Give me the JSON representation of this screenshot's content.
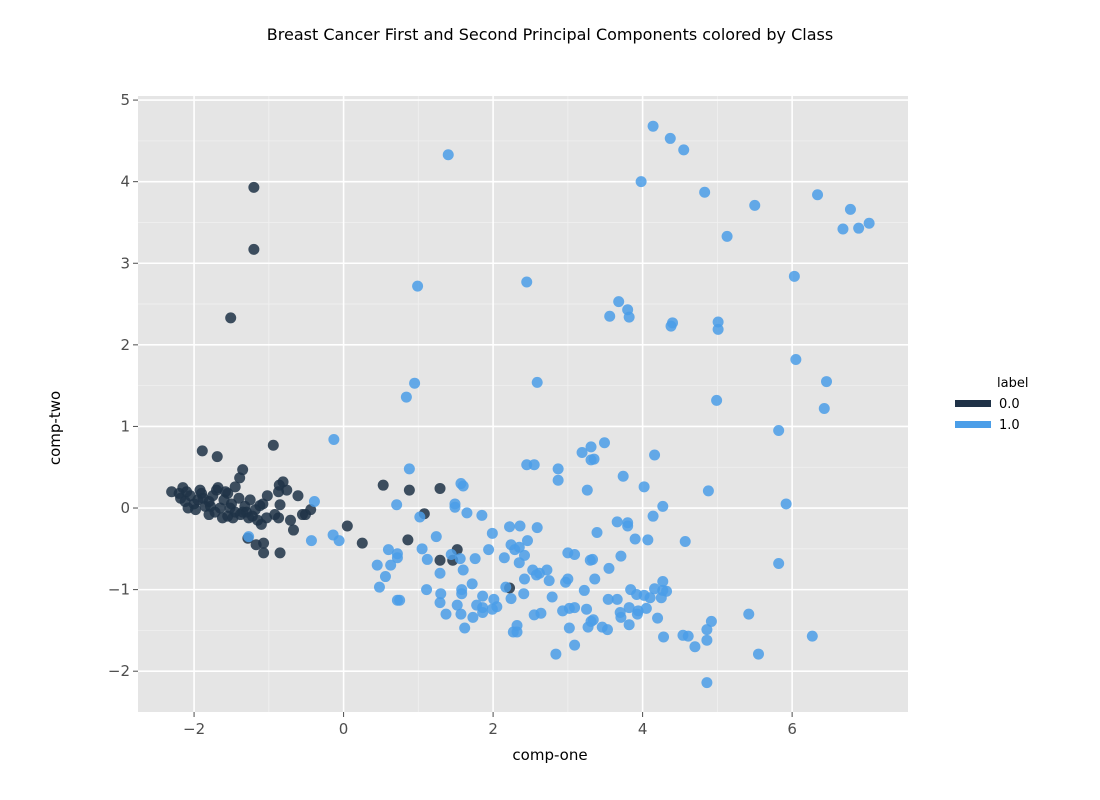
{
  "chart_data": {
    "type": "scatter",
    "title": "Breast Cancer First and Second Principal Components colored by Class",
    "xlabel": "comp-one",
    "ylabel": "comp-two",
    "xlim": [
      -2.75,
      7.55
    ],
    "ylim": [
      -2.5,
      5.05
    ],
    "xticks": [
      -2,
      0,
      2,
      4,
      6
    ],
    "yticks": [
      -2,
      -1,
      0,
      1,
      2,
      3,
      4,
      5
    ],
    "xtick_labels": [
      "−2",
      "0",
      "2",
      "4",
      "6"
    ],
    "ytick_labels": [
      "−2",
      "−1",
      "0",
      "1",
      "2",
      "3",
      "4",
      "5"
    ],
    "grid": true,
    "legend": {
      "title": "label",
      "position": "right"
    },
    "series": [
      {
        "name": "0.0",
        "color": "#1f3247",
        "points": [
          [
            -1.2,
            3.93
          ],
          [
            -1.2,
            3.17
          ],
          [
            -1.51,
            2.33
          ],
          [
            -1.89,
            0.7
          ],
          [
            -1.69,
            0.63
          ],
          [
            -0.94,
            0.77
          ],
          [
            -1.35,
            0.47
          ],
          [
            -1.39,
            0.37
          ],
          [
            -0.81,
            0.32
          ],
          [
            -0.86,
            0.28
          ],
          [
            -0.76,
            0.22
          ],
          [
            -0.87,
            0.2
          ],
          [
            -0.61,
            0.15
          ],
          [
            -0.85,
            0.04
          ],
          [
            -0.44,
            -0.02
          ],
          [
            -0.51,
            -0.08
          ],
          [
            -0.71,
            -0.15
          ],
          [
            -0.87,
            -0.12
          ],
          [
            -0.67,
            -0.27
          ],
          [
            -0.85,
            -0.55
          ],
          [
            -1.07,
            -0.55
          ],
          [
            -1.07,
            -0.43
          ],
          [
            -1.17,
            -0.45
          ],
          [
            -1.28,
            -0.37
          ],
          [
            -1.03,
            -0.12
          ],
          [
            -1.1,
            -0.2
          ],
          [
            -1.15,
            -0.15
          ],
          [
            -1.02,
            0.15
          ],
          [
            -1.08,
            0.05
          ],
          [
            -1.25,
            0.1
          ],
          [
            -1.3,
            -0.05
          ],
          [
            -1.22,
            -0.1
          ],
          [
            -1.45,
            0.26
          ],
          [
            -1.55,
            0.18
          ],
          [
            -1.6,
            0.1
          ],
          [
            -1.5,
            0.05
          ],
          [
            -1.45,
            -0.05
          ],
          [
            -1.38,
            -0.08
          ],
          [
            -1.62,
            -0.12
          ],
          [
            -1.7,
            0.22
          ],
          [
            -1.75,
            0.15
          ],
          [
            -1.8,
            0.08
          ],
          [
            -1.85,
            0.02
          ],
          [
            -1.72,
            -0.05
          ],
          [
            -1.65,
            0.0
          ],
          [
            -1.9,
            0.18
          ],
          [
            -1.95,
            0.1
          ],
          [
            -2.0,
            0.05
          ],
          [
            -2.05,
            0.15
          ],
          [
            -2.1,
            0.2
          ],
          [
            -2.15,
            0.25
          ],
          [
            -2.18,
            0.12
          ],
          [
            -2.2,
            0.18
          ],
          [
            -2.3,
            0.2
          ],
          [
            -2.08,
            0.0
          ],
          [
            -1.98,
            -0.02
          ],
          [
            -1.88,
            0.12
          ],
          [
            -1.8,
            -0.08
          ],
          [
            -1.55,
            -0.1
          ],
          [
            -1.32,
            0.02
          ],
          [
            -1.18,
            -0.02
          ],
          [
            -1.12,
            0.03
          ],
          [
            -1.4,
            0.12
          ],
          [
            -1.58,
            0.2
          ],
          [
            -1.68,
            0.25
          ],
          [
            -1.92,
            0.22
          ],
          [
            -2.12,
            0.08
          ],
          [
            -1.78,
            0.02
          ],
          [
            -1.48,
            -0.12
          ],
          [
            -1.27,
            -0.12
          ],
          [
            -1.35,
            -0.05
          ],
          [
            -1.52,
            0.0
          ],
          [
            -0.55,
            -0.08
          ],
          [
            -0.92,
            -0.08
          ],
          [
            0.05,
            -0.22
          ],
          [
            0.25,
            -0.43
          ],
          [
            0.53,
            0.28
          ],
          [
            0.88,
            0.22
          ],
          [
            0.86,
            -0.39
          ],
          [
            1.29,
            0.24
          ],
          [
            1.08,
            -0.07
          ],
          [
            1.29,
            -0.64
          ],
          [
            1.52,
            -0.51
          ],
          [
            1.46,
            -0.64
          ],
          [
            2.22,
            -0.98
          ]
        ]
      },
      {
        "name": "1.0",
        "color": "#4b9ee8",
        "points": [
          [
            1.4,
            4.33
          ],
          [
            4.14,
            4.68
          ],
          [
            4.37,
            4.53
          ],
          [
            4.55,
            4.39
          ],
          [
            3.98,
            4.0
          ],
          [
            4.83,
            3.87
          ],
          [
            5.5,
            3.71
          ],
          [
            6.34,
            3.84
          ],
          [
            6.78,
            3.66
          ],
          [
            7.03,
            3.49
          ],
          [
            6.89,
            3.43
          ],
          [
            6.68,
            3.42
          ],
          [
            5.13,
            3.33
          ],
          [
            6.03,
            2.84
          ],
          [
            2.45,
            2.77
          ],
          [
            0.99,
            2.72
          ],
          [
            3.68,
            2.53
          ],
          [
            3.8,
            2.43
          ],
          [
            3.82,
            2.34
          ],
          [
            3.56,
            2.35
          ],
          [
            4.4,
            2.27
          ],
          [
            4.38,
            2.23
          ],
          [
            5.01,
            2.28
          ],
          [
            5.01,
            2.19
          ],
          [
            6.05,
            1.82
          ],
          [
            2.59,
            1.54
          ],
          [
            0.95,
            1.53
          ],
          [
            0.84,
            1.36
          ],
          [
            6.46,
            1.55
          ],
          [
            4.99,
            1.32
          ],
          [
            6.43,
            1.22
          ],
          [
            5.82,
            0.95
          ],
          [
            -0.13,
            0.84
          ],
          [
            3.49,
            0.8
          ],
          [
            3.31,
            0.75
          ],
          [
            3.19,
            0.68
          ],
          [
            4.16,
            0.65
          ],
          [
            3.35,
            0.6
          ],
          [
            3.31,
            0.59
          ],
          [
            2.45,
            0.53
          ],
          [
            2.55,
            0.53
          ],
          [
            2.87,
            0.48
          ],
          [
            0.88,
            0.48
          ],
          [
            3.74,
            0.39
          ],
          [
            2.87,
            0.34
          ],
          [
            1.57,
            0.3
          ],
          [
            1.6,
            0.27
          ],
          [
            4.02,
            0.26
          ],
          [
            3.26,
            0.22
          ],
          [
            4.88,
            0.21
          ],
          [
            -0.39,
            0.08
          ],
          [
            0.71,
            0.04
          ],
          [
            1.49,
            0.05
          ],
          [
            1.49,
            0.01
          ],
          [
            4.27,
            0.02
          ],
          [
            5.92,
            0.05
          ],
          [
            1.65,
            -0.06
          ],
          [
            1.85,
            -0.09
          ],
          [
            1.02,
            -0.11
          ],
          [
            4.14,
            -0.1
          ],
          [
            3.66,
            -0.17
          ],
          [
            3.8,
            -0.18
          ],
          [
            3.8,
            -0.22
          ],
          [
            2.22,
            -0.23
          ],
          [
            2.36,
            -0.22
          ],
          [
            2.59,
            -0.24
          ],
          [
            1.99,
            -0.31
          ],
          [
            3.39,
            -0.3
          ],
          [
            -0.14,
            -0.33
          ],
          [
            -0.06,
            -0.4
          ],
          [
            -0.43,
            -0.4
          ],
          [
            -1.27,
            -0.35
          ],
          [
            1.24,
            -0.35
          ],
          [
            3.9,
            -0.38
          ],
          [
            4.07,
            -0.39
          ],
          [
            4.57,
            -0.41
          ],
          [
            2.46,
            -0.4
          ],
          [
            2.24,
            -0.45
          ],
          [
            2.35,
            -0.48
          ],
          [
            1.94,
            -0.51
          ],
          [
            0.6,
            -0.51
          ],
          [
            1.05,
            -0.5
          ],
          [
            2.29,
            -0.51
          ],
          [
            2.42,
            -0.58
          ],
          [
            3.0,
            -0.55
          ],
          [
            3.09,
            -0.57
          ],
          [
            2.15,
            -0.61
          ],
          [
            1.44,
            -0.57
          ],
          [
            1.56,
            -0.62
          ],
          [
            1.12,
            -0.63
          ],
          [
            1.76,
            -0.62
          ],
          [
            0.72,
            -0.56
          ],
          [
            0.72,
            -0.61
          ],
          [
            3.71,
            -0.59
          ],
          [
            3.33,
            -0.63
          ],
          [
            3.3,
            -0.64
          ],
          [
            2.35,
            -0.67
          ],
          [
            0.63,
            -0.7
          ],
          [
            0.45,
            -0.7
          ],
          [
            2.53,
            -0.76
          ],
          [
            2.62,
            -0.8
          ],
          [
            2.58,
            -0.82
          ],
          [
            1.6,
            -0.76
          ],
          [
            2.72,
            -0.76
          ],
          [
            1.29,
            -0.8
          ],
          [
            3.55,
            -0.74
          ],
          [
            0.56,
            -0.84
          ],
          [
            2.42,
            -0.87
          ],
          [
            2.75,
            -0.89
          ],
          [
            3.0,
            -0.87
          ],
          [
            3.36,
            -0.87
          ],
          [
            4.27,
            -0.9
          ],
          [
            1.72,
            -0.93
          ],
          [
            0.48,
            -0.97
          ],
          [
            2.97,
            -0.91
          ],
          [
            2.17,
            -0.97
          ],
          [
            3.22,
            -1.01
          ],
          [
            1.11,
            -1.0
          ],
          [
            1.58,
            -1.0
          ],
          [
            1.58,
            -1.05
          ],
          [
            3.84,
            -1.0
          ],
          [
            4.16,
            -0.99
          ],
          [
            4.32,
            -1.02
          ],
          [
            4.27,
            -1.01
          ],
          [
            1.3,
            -1.05
          ],
          [
            1.86,
            -1.08
          ],
          [
            2.01,
            -1.12
          ],
          [
            2.24,
            -1.11
          ],
          [
            2.41,
            -1.05
          ],
          [
            2.79,
            -1.09
          ],
          [
            3.54,
            -1.12
          ],
          [
            3.66,
            -1.12
          ],
          [
            3.92,
            -1.06
          ],
          [
            4.02,
            -1.07
          ],
          [
            4.1,
            -1.1
          ],
          [
            4.25,
            -1.1
          ],
          [
            0.72,
            -1.13
          ],
          [
            0.75,
            -1.13
          ],
          [
            1.29,
            -1.16
          ],
          [
            1.52,
            -1.19
          ],
          [
            1.78,
            -1.19
          ],
          [
            1.86,
            -1.22
          ],
          [
            2.05,
            -1.21
          ],
          [
            3.09,
            -1.22
          ],
          [
            3.02,
            -1.23
          ],
          [
            2.93,
            -1.26
          ],
          [
            3.25,
            -1.24
          ],
          [
            3.82,
            -1.22
          ],
          [
            3.94,
            -1.26
          ],
          [
            4.05,
            -1.23
          ],
          [
            1.37,
            -1.3
          ],
          [
            1.57,
            -1.3
          ],
          [
            1.86,
            -1.28
          ],
          [
            1.99,
            -1.24
          ],
          [
            2.55,
            -1.31
          ],
          [
            2.64,
            -1.29
          ],
          [
            3.7,
            -1.28
          ],
          [
            3.93,
            -1.3
          ],
          [
            3.34,
            -1.37
          ],
          [
            3.31,
            -1.39
          ],
          [
            3.71,
            -1.34
          ],
          [
            4.2,
            -1.35
          ],
          [
            5.42,
            -1.3
          ],
          [
            1.73,
            -1.34
          ],
          [
            3.02,
            -1.47
          ],
          [
            3.46,
            -1.46
          ],
          [
            3.27,
            -1.46
          ],
          [
            3.53,
            -1.49
          ],
          [
            3.82,
            -1.43
          ],
          [
            4.92,
            -1.39
          ],
          [
            4.86,
            -1.49
          ],
          [
            2.32,
            -1.44
          ],
          [
            2.27,
            -1.52
          ],
          [
            2.32,
            -1.52
          ],
          [
            1.62,
            -1.47
          ],
          [
            4.28,
            -1.58
          ],
          [
            4.54,
            -1.56
          ],
          [
            4.61,
            -1.57
          ],
          [
            4.86,
            -1.62
          ],
          [
            4.7,
            -1.7
          ],
          [
            3.09,
            -1.68
          ],
          [
            6.27,
            -1.57
          ],
          [
            2.84,
            -1.79
          ],
          [
            5.55,
            -1.79
          ],
          [
            4.86,
            -2.14
          ],
          [
            5.82,
            -0.68
          ]
        ]
      }
    ]
  }
}
